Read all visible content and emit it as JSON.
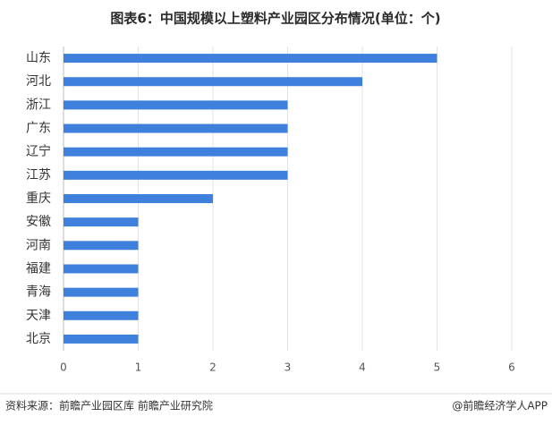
{
  "chart_data": {
    "type": "barh",
    "title": "图表6：中国规模以上塑料产业园区分布情况(单位：个)",
    "categories": [
      "山东",
      "河北",
      "浙江",
      "广东",
      "辽宁",
      "江苏",
      "重庆",
      "安徽",
      "河南",
      "福建",
      "青海",
      "天津",
      "北京"
    ],
    "values": [
      5,
      4,
      3,
      3,
      3,
      3,
      2,
      1,
      1,
      1,
      1,
      1,
      1
    ],
    "color": "#3f80dc",
    "xlim": [
      0,
      6
    ],
    "xticks": [
      0,
      1,
      2,
      3,
      4,
      5,
      6
    ],
    "grid": true,
    "source": "资料来源：前瞻产业园区库 前瞻产业研究院",
    "credit": "@前瞻经济学人APP"
  }
}
